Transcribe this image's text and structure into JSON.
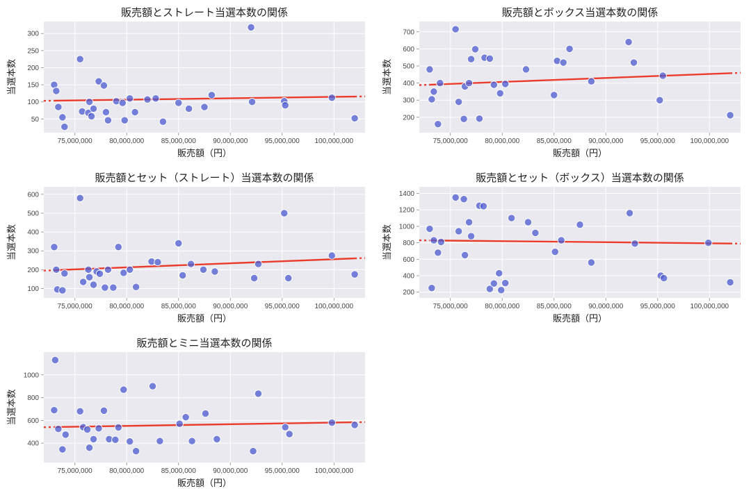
{
  "global": {
    "background_color": "#ffffff",
    "plot_bg_color": "#e9e9ef",
    "grid_color": "#ffffff",
    "trend_color": "#eb3b2a",
    "marker_fill": "#4b59d0",
    "marker_alpha": 0.75,
    "marker_edge": "#ffffff",
    "marker_radius": 5.2,
    "trend_width": 2.4,
    "title_fontsize": 15,
    "axis_label_fontsize": 13,
    "tick_fontsize": 10,
    "tick_color": "#444444",
    "xlabel": "販売額（円）",
    "ylabel": "当選本数",
    "x_ticks": [
      75000000,
      80000000,
      85000000,
      90000000,
      95000000,
      100000000
    ],
    "x_tick_labels": [
      "75,000,000",
      "80,000,000",
      "85,000,000",
      "90,000,000",
      "95,000,000",
      "100,000,000"
    ],
    "x_domain": [
      72000000,
      103000000
    ]
  },
  "charts": [
    {
      "id": "c0",
      "title": "販売額とストレート当選本数の関係",
      "y_domain": [
        10,
        335
      ],
      "y_ticks": [
        50,
        100,
        150,
        200,
        250,
        300
      ],
      "trend": {
        "y_at_xmin": 103,
        "y_at_xmax": 116
      },
      "points": [
        [
          73000000,
          150
        ],
        [
          73200000,
          132
        ],
        [
          73400000,
          85
        ],
        [
          73800000,
          55
        ],
        [
          74000000,
          27
        ],
        [
          75500000,
          225
        ],
        [
          75700000,
          72
        ],
        [
          76300000,
          68
        ],
        [
          76400000,
          100
        ],
        [
          76600000,
          58
        ],
        [
          76800000,
          80
        ],
        [
          77300000,
          160
        ],
        [
          77800000,
          148
        ],
        [
          78000000,
          70
        ],
        [
          78200000,
          46
        ],
        [
          79000000,
          102
        ],
        [
          79600000,
          97
        ],
        [
          79800000,
          46
        ],
        [
          80300000,
          110
        ],
        [
          80800000,
          70
        ],
        [
          82000000,
          107
        ],
        [
          82800000,
          110
        ],
        [
          83500000,
          42
        ],
        [
          85000000,
          97
        ],
        [
          86000000,
          80
        ],
        [
          87500000,
          85
        ],
        [
          88200000,
          120
        ],
        [
          92000000,
          318
        ],
        [
          92100000,
          100
        ],
        [
          95200000,
          102
        ],
        [
          95300000,
          90
        ],
        [
          99800000,
          112
        ],
        [
          102000000,
          52
        ]
      ]
    },
    {
      "id": "c1",
      "title": "販売額とボックス当選本数の関係",
      "y_domain": [
        110,
        760
      ],
      "y_ticks": [
        200,
        300,
        400,
        500,
        600,
        700
      ],
      "trend": {
        "y_at_xmin": 388,
        "y_at_xmax": 460
      },
      "points": [
        [
          73000000,
          480
        ],
        [
          73200000,
          305
        ],
        [
          73400000,
          350
        ],
        [
          73800000,
          160
        ],
        [
          74000000,
          400
        ],
        [
          75500000,
          715
        ],
        [
          75800000,
          290
        ],
        [
          76300000,
          190
        ],
        [
          76400000,
          380
        ],
        [
          76800000,
          400
        ],
        [
          77000000,
          540
        ],
        [
          77400000,
          598
        ],
        [
          77800000,
          192
        ],
        [
          78300000,
          548
        ],
        [
          78800000,
          543
        ],
        [
          79200000,
          390
        ],
        [
          79800000,
          340
        ],
        [
          80300000,
          395
        ],
        [
          82300000,
          480
        ],
        [
          85000000,
          330
        ],
        [
          85300000,
          530
        ],
        [
          85900000,
          520
        ],
        [
          86500000,
          600
        ],
        [
          88600000,
          410
        ],
        [
          92200000,
          640
        ],
        [
          92700000,
          520
        ],
        [
          95200000,
          300
        ],
        [
          95500000,
          443
        ],
        [
          102000000,
          212
        ]
      ]
    },
    {
      "id": "c2",
      "title": "販売額とセット（ストレート）当選本数の関係",
      "y_domain": [
        50,
        640
      ],
      "y_ticks": [
        100,
        200,
        300,
        400,
        500,
        600
      ],
      "trend": {
        "y_at_xmin": 195,
        "y_at_xmax": 262
      },
      "points": [
        [
          73000000,
          320
        ],
        [
          73200000,
          200
        ],
        [
          73300000,
          95
        ],
        [
          73800000,
          90
        ],
        [
          74000000,
          180
        ],
        [
          75500000,
          580
        ],
        [
          75800000,
          135
        ],
        [
          76300000,
          200
        ],
        [
          76400000,
          160
        ],
        [
          76800000,
          120
        ],
        [
          77100000,
          190
        ],
        [
          77400000,
          178
        ],
        [
          77900000,
          105
        ],
        [
          78200000,
          200
        ],
        [
          78700000,
          105
        ],
        [
          79200000,
          320
        ],
        [
          79700000,
          183
        ],
        [
          80300000,
          200
        ],
        [
          80900000,
          108
        ],
        [
          82400000,
          243
        ],
        [
          83000000,
          240
        ],
        [
          85000000,
          340
        ],
        [
          85400000,
          170
        ],
        [
          86200000,
          230
        ],
        [
          87400000,
          200
        ],
        [
          88500000,
          190
        ],
        [
          92300000,
          155
        ],
        [
          92700000,
          230
        ],
        [
          95200000,
          500
        ],
        [
          95600000,
          155
        ],
        [
          99800000,
          275
        ],
        [
          102000000,
          175
        ]
      ]
    },
    {
      "id": "c3",
      "title": "販売額とセット（ボックス）当選本数の関係",
      "y_domain": [
        130,
        1480
      ],
      "y_ticks": [
        200,
        400,
        600,
        800,
        1000,
        1200,
        1400
      ],
      "trend": {
        "y_at_xmin": 830,
        "y_at_xmax": 790
      },
      "points": [
        [
          73000000,
          970
        ],
        [
          73200000,
          250
        ],
        [
          73400000,
          830
        ],
        [
          73800000,
          680
        ],
        [
          74100000,
          810
        ],
        [
          75500000,
          1350
        ],
        [
          75800000,
          940
        ],
        [
          76300000,
          1330
        ],
        [
          76400000,
          650
        ],
        [
          76800000,
          1050
        ],
        [
          77000000,
          880
        ],
        [
          77800000,
          1250
        ],
        [
          78200000,
          1245
        ],
        [
          78800000,
          240
        ],
        [
          79200000,
          305
        ],
        [
          79700000,
          430
        ],
        [
          79900000,
          225
        ],
        [
          80300000,
          310
        ],
        [
          80900000,
          1100
        ],
        [
          82500000,
          1050
        ],
        [
          83200000,
          920
        ],
        [
          85100000,
          690
        ],
        [
          85700000,
          830
        ],
        [
          87500000,
          1020
        ],
        [
          88600000,
          560
        ],
        [
          92300000,
          1160
        ],
        [
          92800000,
          790
        ],
        [
          95300000,
          400
        ],
        [
          95600000,
          370
        ],
        [
          99900000,
          800
        ],
        [
          102000000,
          320
        ]
      ]
    },
    {
      "id": "c4",
      "title": "販売額とミニ当選本数の関係",
      "y_domain": [
        230,
        1200
      ],
      "y_ticks": [
        400,
        600,
        800,
        1000
      ],
      "trend": {
        "y_at_xmin": 540,
        "y_at_xmax": 585
      },
      "points": [
        [
          73000000,
          690
        ],
        [
          73100000,
          1130
        ],
        [
          73400000,
          525
        ],
        [
          73800000,
          345
        ],
        [
          74100000,
          475
        ],
        [
          75500000,
          680
        ],
        [
          75800000,
          540
        ],
        [
          76200000,
          520
        ],
        [
          76400000,
          360
        ],
        [
          76800000,
          435
        ],
        [
          77300000,
          530
        ],
        [
          77800000,
          685
        ],
        [
          78300000,
          435
        ],
        [
          78900000,
          430
        ],
        [
          79200000,
          538
        ],
        [
          79700000,
          870
        ],
        [
          80300000,
          415
        ],
        [
          80900000,
          330
        ],
        [
          82500000,
          900
        ],
        [
          83200000,
          418
        ],
        [
          85100000,
          570
        ],
        [
          85700000,
          628
        ],
        [
          86300000,
          418
        ],
        [
          87600000,
          660
        ],
        [
          88700000,
          435
        ],
        [
          92200000,
          330
        ],
        [
          92700000,
          835
        ],
        [
          95300000,
          540
        ],
        [
          95700000,
          480
        ],
        [
          99800000,
          580
        ],
        [
          102000000,
          560
        ]
      ]
    }
  ]
}
